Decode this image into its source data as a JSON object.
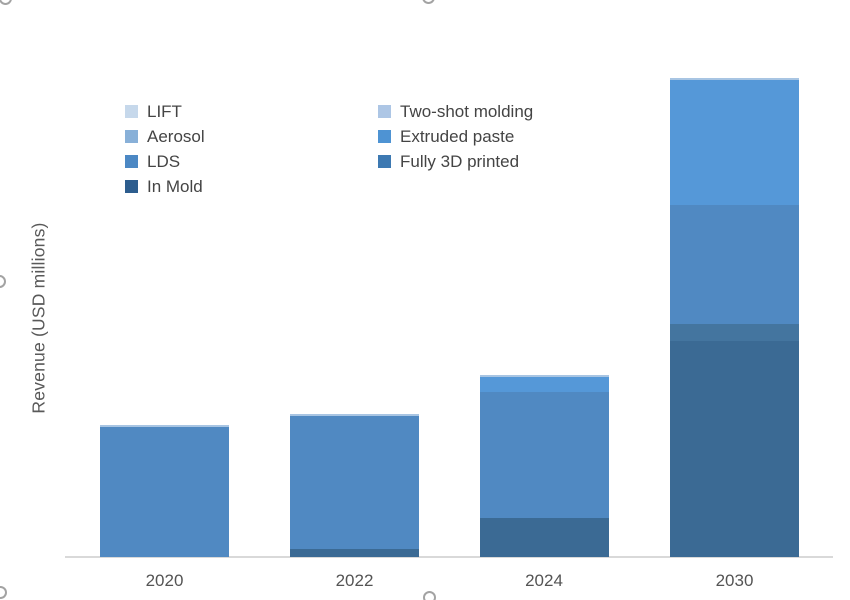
{
  "y_axis": {
    "title": "Revenue (USD millions)",
    "text_color": "#595959",
    "tick_labels_visible": false
  },
  "x_axis": {
    "text_color": "#545454",
    "line_color": "#d9d9d9"
  },
  "legend": {
    "text_color": "#444444",
    "position": "top-left, two columns",
    "columns": [
      {
        "items": [
          {
            "label": "LIFT",
            "color": "#c6d8eb"
          },
          {
            "label": "Aerosol",
            "color": "#88b0d8"
          },
          {
            "label": "LDS",
            "color": "#4c88c4"
          },
          {
            "label": "In Mold",
            "color": "#2d5d8e"
          }
        ]
      },
      {
        "items": [
          {
            "label": "Two-shot molding",
            "color": "#adc6e5"
          },
          {
            "label": "Extruded paste",
            "color": "#4e93d3"
          },
          {
            "label": "Fully 3D printed",
            "color": "#3d79b2"
          }
        ]
      }
    ]
  },
  "chart_data": {
    "type": "bar",
    "stacked": true,
    "title": "",
    "xlabel": "",
    "ylabel": "Revenue (USD millions)",
    "unit_note": "y-axis has no tick labels; values are relative units estimated from pixel heights (1 unit = 1 px)",
    "ylim": [
      0,
      500
    ],
    "grid": false,
    "categories": [
      "2020",
      "2022",
      "2024",
      "2030"
    ],
    "stacking_order": "series listed bottom-to-top",
    "series": [
      {
        "name": "In Mold",
        "color": "#3b6a94",
        "values": [
          0,
          8,
          39,
          216
        ]
      },
      {
        "name": "Fully 3D printed",
        "color": "#44759f",
        "values": [
          0,
          0,
          0,
          17
        ]
      },
      {
        "name": "LDS",
        "color": "#5089c2",
        "values": [
          130,
          133,
          126,
          119
        ]
      },
      {
        "name": "Extruded paste",
        "color": "#5598d8",
        "values": [
          0,
          0,
          15,
          125
        ]
      },
      {
        "name": "Aerosol",
        "color": "#88b0d8",
        "values": [
          0,
          0,
          0,
          0
        ]
      },
      {
        "name": "Two-shot molding",
        "color": "#a8c5e3",
        "values": [
          2,
          2,
          2,
          2
        ]
      },
      {
        "name": "LIFT",
        "color": "#c6d8eb",
        "values": [
          0,
          0,
          0,
          0
        ]
      }
    ],
    "totals": [
      132,
      143,
      182,
      479
    ]
  }
}
